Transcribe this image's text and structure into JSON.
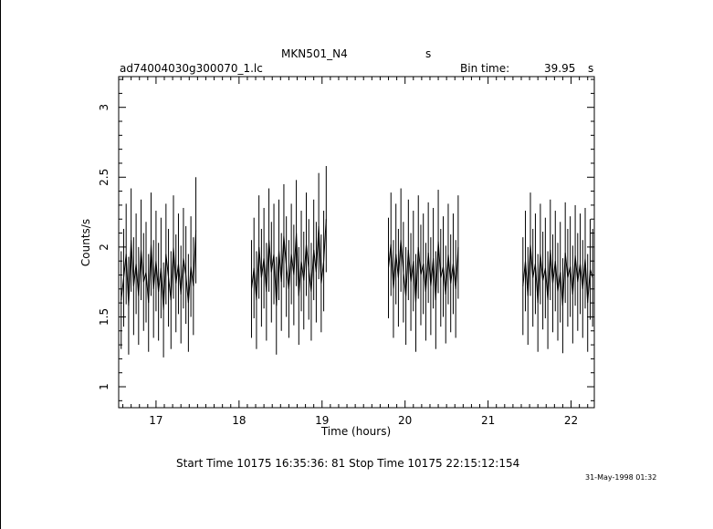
{
  "header": {
    "object": "MKN501_N4",
    "s_label": "s",
    "filename": "ad74004030g300070_1.lc",
    "bin_time_label": "Bin time:",
    "bin_time_value": "39.95",
    "bin_time_unit": "s"
  },
  "footer": {
    "times": "Start Time 10175 16:35:36: 81    Stop Time 10175 22:15:12:154",
    "date": "31-May-1998 01:32"
  },
  "chart_data": {
    "type": "line",
    "title": "MKN501_N4",
    "xlabel": "Time (hours)",
    "ylabel": "Counts/s",
    "xlim": [
      16.55,
      22.28
    ],
    "ylim": [
      0.85,
      3.22
    ],
    "xticks": [
      17,
      18,
      19,
      20,
      21,
      22
    ],
    "yticks": [
      1,
      1.5,
      2,
      2.5,
      3
    ],
    "xtick_labels": [
      "17",
      "18",
      "19",
      "20",
      "21",
      "22"
    ],
    "ytick_labels": [
      "1",
      "1.5",
      "2",
      "2.5",
      "3"
    ],
    "grid": false,
    "segments": [
      {
        "x_start": 16.58,
        "x_end": 17.5,
        "mean": 1.83
      },
      {
        "x_start": 18.15,
        "x_end": 19.07,
        "mean": 1.88
      },
      {
        "x_start": 19.8,
        "x_end": 20.67,
        "mean": 1.86
      },
      {
        "x_start": 21.42,
        "x_end": 22.28,
        "mean": 1.82
      }
    ],
    "series": [
      {
        "values": [
          [
            16.58,
            1.62,
            0.35
          ],
          [
            16.61,
            1.78,
            0.35
          ],
          [
            16.64,
            1.95,
            0.36
          ],
          [
            16.67,
            1.58,
            0.35
          ],
          [
            16.7,
            2.05,
            0.37
          ],
          [
            16.73,
            1.72,
            0.35
          ],
          [
            16.76,
            1.88,
            0.36
          ],
          [
            16.79,
            1.65,
            0.35
          ],
          [
            16.82,
            1.98,
            0.36
          ],
          [
            16.85,
            1.75,
            0.35
          ],
          [
            16.88,
            1.82,
            0.36
          ],
          [
            16.91,
            1.6,
            0.35
          ],
          [
            16.94,
            2.02,
            0.37
          ],
          [
            16.97,
            1.7,
            0.35
          ],
          [
            17.0,
            1.9,
            0.36
          ],
          [
            17.03,
            1.68,
            0.35
          ],
          [
            17.06,
            1.85,
            0.36
          ],
          [
            17.09,
            1.55,
            0.34
          ],
          [
            17.12,
            1.95,
            0.36
          ],
          [
            17.15,
            1.78,
            0.35
          ],
          [
            17.18,
            1.62,
            0.35
          ],
          [
            17.21,
            2.0,
            0.37
          ],
          [
            17.24,
            1.74,
            0.35
          ],
          [
            17.27,
            1.88,
            0.36
          ],
          [
            17.3,
            1.66,
            0.35
          ],
          [
            17.33,
            1.92,
            0.36
          ],
          [
            17.36,
            1.8,
            0.35
          ],
          [
            17.39,
            1.6,
            0.35
          ],
          [
            17.42,
            1.86,
            0.36
          ],
          [
            17.45,
            1.72,
            0.35
          ],
          [
            17.48,
            2.12,
            0.38
          ],
          [
            18.15,
            1.7,
            0.35
          ],
          [
            18.18,
            1.85,
            0.36
          ],
          [
            18.21,
            1.62,
            0.35
          ],
          [
            18.24,
            2.0,
            0.37
          ],
          [
            18.27,
            1.78,
            0.35
          ],
          [
            18.3,
            1.92,
            0.36
          ],
          [
            18.33,
            1.68,
            0.35
          ],
          [
            18.36,
            2.05,
            0.37
          ],
          [
            18.39,
            1.82,
            0.36
          ],
          [
            18.42,
            1.95,
            0.36
          ],
          [
            18.45,
            1.58,
            0.35
          ],
          [
            18.48,
            1.98,
            0.36
          ],
          [
            18.51,
            1.75,
            0.35
          ],
          [
            18.54,
            2.08,
            0.37
          ],
          [
            18.57,
            1.86,
            0.36
          ],
          [
            18.6,
            1.7,
            0.35
          ],
          [
            18.63,
            1.95,
            0.36
          ],
          [
            18.66,
            1.8,
            0.36
          ],
          [
            18.69,
            2.1,
            0.38
          ],
          [
            18.72,
            1.65,
            0.35
          ],
          [
            18.75,
            1.9,
            0.36
          ],
          [
            18.78,
            1.76,
            0.35
          ],
          [
            18.81,
            2.02,
            0.37
          ],
          [
            18.84,
            1.84,
            0.36
          ],
          [
            18.87,
            1.68,
            0.35
          ],
          [
            18.9,
            1.98,
            0.36
          ],
          [
            18.93,
            1.82,
            0.36
          ],
          [
            18.96,
            2.15,
            0.38
          ],
          [
            18.99,
            1.74,
            0.35
          ],
          [
            19.02,
            1.9,
            0.36
          ],
          [
            19.05,
            2.2,
            0.38
          ],
          [
            19.8,
            1.85,
            0.36
          ],
          [
            19.83,
            2.02,
            0.37
          ],
          [
            19.86,
            1.7,
            0.35
          ],
          [
            19.89,
            1.95,
            0.36
          ],
          [
            19.92,
            1.78,
            0.35
          ],
          [
            19.95,
            2.05,
            0.37
          ],
          [
            19.98,
            1.82,
            0.36
          ],
          [
            20.01,
            1.65,
            0.35
          ],
          [
            20.04,
            1.98,
            0.36
          ],
          [
            20.07,
            1.75,
            0.35
          ],
          [
            20.1,
            1.9,
            0.36
          ],
          [
            20.13,
            1.6,
            0.35
          ],
          [
            20.16,
            2.0,
            0.37
          ],
          [
            20.19,
            1.8,
            0.36
          ],
          [
            20.22,
            1.88,
            0.36
          ],
          [
            20.25,
            1.68,
            0.35
          ],
          [
            20.28,
            1.96,
            0.36
          ],
          [
            20.31,
            1.72,
            0.35
          ],
          [
            20.34,
            1.92,
            0.36
          ],
          [
            20.37,
            1.62,
            0.35
          ],
          [
            20.4,
            2.04,
            0.37
          ],
          [
            20.43,
            1.78,
            0.35
          ],
          [
            20.46,
            1.86,
            0.36
          ],
          [
            20.49,
            1.66,
            0.35
          ],
          [
            20.52,
            1.95,
            0.36
          ],
          [
            20.55,
            1.74,
            0.35
          ],
          [
            20.58,
            1.88,
            0.36
          ],
          [
            20.61,
            1.7,
            0.35
          ],
          [
            20.64,
            2.0,
            0.37
          ],
          [
            21.42,
            1.72,
            0.35
          ],
          [
            21.45,
            1.9,
            0.36
          ],
          [
            21.48,
            1.65,
            0.35
          ],
          [
            21.51,
            2.02,
            0.37
          ],
          [
            21.54,
            1.78,
            0.35
          ],
          [
            21.57,
            1.88,
            0.36
          ],
          [
            21.6,
            1.6,
            0.35
          ],
          [
            21.63,
            1.95,
            0.36
          ],
          [
            21.66,
            1.76,
            0.35
          ],
          [
            21.69,
            1.85,
            0.36
          ],
          [
            21.72,
            1.62,
            0.35
          ],
          [
            21.75,
            1.98,
            0.36
          ],
          [
            21.78,
            1.74,
            0.35
          ],
          [
            21.81,
            1.9,
            0.36
          ],
          [
            21.84,
            1.68,
            0.35
          ],
          [
            21.87,
            1.82,
            0.36
          ],
          [
            21.9,
            1.58,
            0.34
          ],
          [
            21.93,
            1.96,
            0.36
          ],
          [
            21.96,
            1.78,
            0.35
          ],
          [
            21.99,
            1.86,
            0.36
          ],
          [
            22.02,
            1.66,
            0.35
          ],
          [
            22.05,
            1.94,
            0.36
          ],
          [
            22.08,
            1.75,
            0.35
          ],
          [
            22.11,
            1.88,
            0.36
          ],
          [
            22.14,
            1.7,
            0.35
          ],
          [
            22.17,
            1.92,
            0.36
          ],
          [
            22.2,
            1.6,
            0.35
          ],
          [
            22.23,
            1.84,
            0.36
          ],
          [
            22.26,
            1.78,
            0.35
          ]
        ]
      }
    ]
  }
}
